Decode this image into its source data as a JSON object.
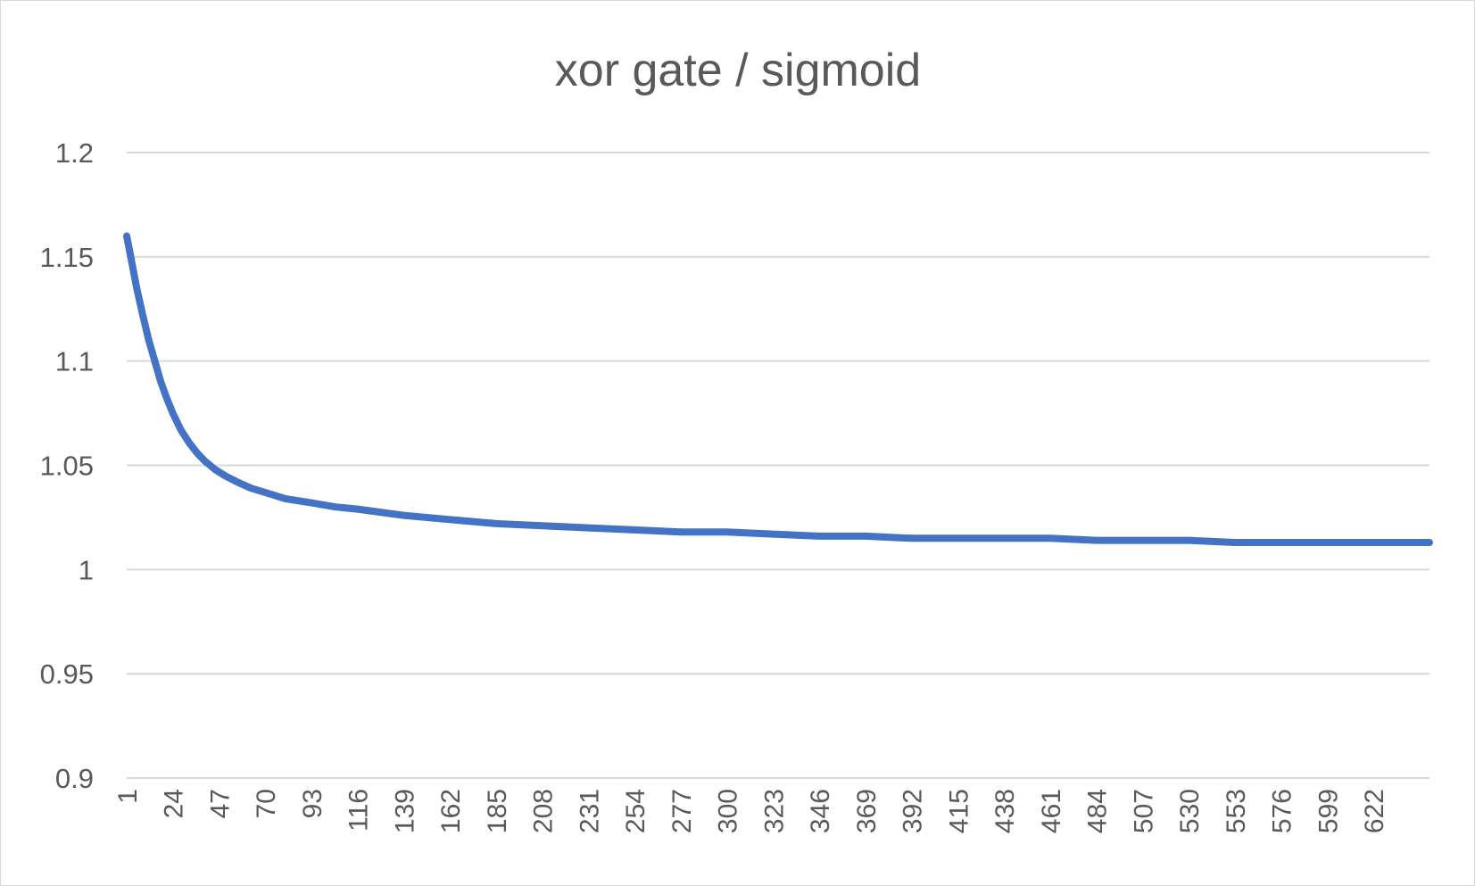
{
  "chart_data": {
    "type": "line",
    "title": "xor gate / sigmoid",
    "xlabel": "",
    "ylabel": "",
    "ylim": [
      0.9,
      1.2
    ],
    "yticks": [
      "0.9",
      "0.95",
      "1",
      "1.05",
      "1.1",
      "1.15",
      "1.2"
    ],
    "xlim": [
      1,
      650
    ],
    "xticks": [
      "1",
      "24",
      "47",
      "70",
      "93",
      "116",
      "139",
      "162",
      "185",
      "208",
      "231",
      "254",
      "277",
      "300",
      "323",
      "346",
      "369",
      "392",
      "415",
      "438",
      "461",
      "484",
      "507",
      "530",
      "553",
      "576",
      "599",
      "622"
    ],
    "grid": true,
    "legend": "none",
    "series": [
      {
        "color": "#4472c4",
        "x": [
          1,
          3,
          6,
          9,
          12,
          15,
          18,
          21,
          24,
          28,
          32,
          36,
          40,
          45,
          50,
          56,
          63,
          70,
          80,
          93,
          105,
          116,
          139,
          162,
          185,
          208,
          231,
          254,
          277,
          300,
          323,
          346,
          369,
          392,
          415,
          438,
          461,
          484,
          507,
          530,
          553,
          576,
          599,
          622,
          650
        ],
        "values": [
          1.16,
          1.15,
          1.135,
          1.122,
          1.11,
          1.1,
          1.09,
          1.082,
          1.075,
          1.067,
          1.061,
          1.056,
          1.052,
          1.048,
          1.045,
          1.042,
          1.039,
          1.037,
          1.034,
          1.032,
          1.03,
          1.029,
          1.026,
          1.024,
          1.022,
          1.021,
          1.02,
          1.019,
          1.018,
          1.018,
          1.017,
          1.016,
          1.016,
          1.015,
          1.015,
          1.015,
          1.015,
          1.014,
          1.014,
          1.014,
          1.013,
          1.013,
          1.013,
          1.013,
          1.013
        ]
      }
    ]
  }
}
